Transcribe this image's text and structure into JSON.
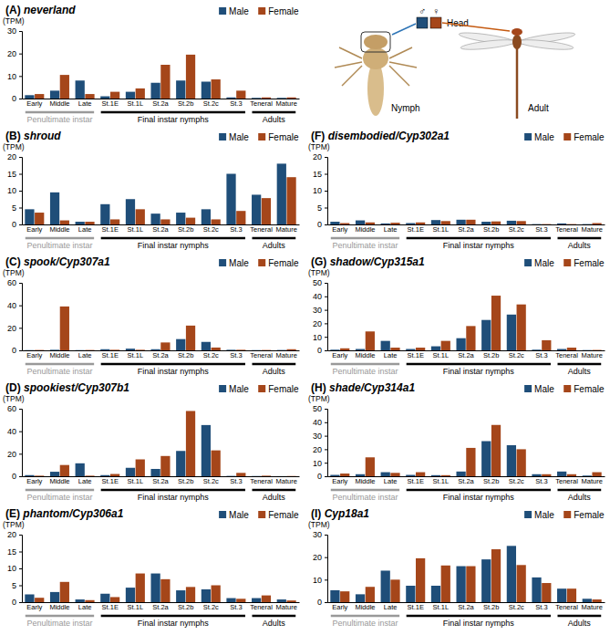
{
  "chart_data": [
    {
      "type": "bar",
      "title": "(A) neverland",
      "y_label": "(TPM)",
      "categories": [
        "Early",
        "Middle",
        "Late",
        "St.1E",
        "St.1L",
        "St.2a",
        "St.2b",
        "St.2c",
        "St.3",
        "Teneral",
        "Mature"
      ],
      "series": [
        {
          "name": "Male",
          "color": "#1f4e79",
          "values": [
            1.5,
            3.5,
            8,
            1,
            3,
            7,
            8,
            7.5,
            0.5,
            0.3,
            0.3
          ]
        },
        {
          "name": "Female",
          "color": "#a5461a",
          "values": [
            2,
            10.5,
            2,
            3,
            4.5,
            15,
            19.5,
            8.5,
            3.5,
            0.5,
            0.5
          ]
        }
      ],
      "ylim": [
        0,
        30
      ],
      "yticks": [
        0,
        10,
        20,
        30
      ],
      "grid": false,
      "legend": "top-right",
      "annotations": [
        {
          "text": "Penultimate instar",
          "from": 0,
          "to": 2,
          "color": "#999999"
        },
        {
          "text": "Final instar nymphs",
          "from": 3,
          "to": 8,
          "color": "#000000"
        },
        {
          "text": "Adults",
          "from": 9,
          "to": 10,
          "color": "#000000"
        }
      ]
    },
    {
      "type": "bar",
      "title": "(B) shroud",
      "y_label": "(TPM)",
      "categories": [
        "Early",
        "Middle",
        "Late",
        "St.1E",
        "St.1L",
        "St.2a",
        "St.2b",
        "St.2c",
        "St.3",
        "Teneral",
        "Mature"
      ],
      "series": [
        {
          "name": "Male",
          "color": "#1f4e79",
          "values": [
            4.5,
            9.5,
            0.8,
            6,
            7.5,
            3.2,
            3.5,
            4.5,
            15,
            8.8,
            18
          ]
        },
        {
          "name": "Female",
          "color": "#a5461a",
          "values": [
            3.5,
            1.2,
            0.8,
            1.5,
            4.5,
            1.5,
            2,
            1.5,
            4,
            7.8,
            14
          ]
        }
      ],
      "ylim": [
        0,
        20
      ],
      "yticks": [
        0,
        5,
        10,
        15,
        20
      ],
      "grid": false,
      "legend": "top-right",
      "annotations": [
        {
          "text": "Penultimate instar",
          "from": 0,
          "to": 2,
          "color": "#999999"
        },
        {
          "text": "Final instar nymphs",
          "from": 3,
          "to": 8,
          "color": "#000000"
        },
        {
          "text": "Adults",
          "from": 9,
          "to": 10,
          "color": "#000000"
        }
      ]
    },
    {
      "type": "bar",
      "title": "(C) spook/Cyp307a1",
      "y_label": "(TPM)",
      "categories": [
        "Early",
        "Middle",
        "Late",
        "St.1E",
        "St.1L",
        "St.2a",
        "St.2b",
        "St.2c",
        "St.3",
        "Teneral",
        "Mature"
      ],
      "series": [
        {
          "name": "Male",
          "color": "#1f4e79",
          "values": [
            0.2,
            0.5,
            0.2,
            1,
            1.5,
            1,
            10,
            7.5,
            0.5,
            0.2,
            0.3
          ]
        },
        {
          "name": "Female",
          "color": "#a5461a",
          "values": [
            0.3,
            39,
            0.3,
            0.5,
            0.5,
            7,
            22,
            2.5,
            0.5,
            0.3,
            1
          ]
        }
      ],
      "ylim": [
        0,
        60
      ],
      "yticks": [
        0,
        20,
        40,
        60
      ],
      "grid": false,
      "legend": "top-right",
      "annotations": [
        {
          "text": "Penultimate instar",
          "from": 0,
          "to": 2,
          "color": "#999999"
        },
        {
          "text": "Final instar nymphs",
          "from": 3,
          "to": 8,
          "color": "#000000"
        },
        {
          "text": "Adults",
          "from": 9,
          "to": 10,
          "color": "#000000"
        }
      ]
    },
    {
      "type": "bar",
      "title": "(D) spookiest/Cyp307b1",
      "y_label": "(TPM)",
      "categories": [
        "Early",
        "Middle",
        "Late",
        "St.1E",
        "St.1L",
        "St.2a",
        "St.2b",
        "St.2c",
        "St.3",
        "Teneral",
        "Mature"
      ],
      "series": [
        {
          "name": "Male",
          "color": "#1f4e79",
          "values": [
            1,
            4,
            11.5,
            1,
            7.5,
            6.5,
            22.5,
            45.5,
            0.3,
            0.2,
            0.1
          ]
        },
        {
          "name": "Female",
          "color": "#a5461a",
          "values": [
            0.5,
            10,
            0.5,
            2,
            15,
            18,
            58,
            23,
            3,
            0.5,
            0.2
          ]
        }
      ],
      "ylim": [
        0,
        60
      ],
      "yticks": [
        0,
        20,
        40,
        60
      ],
      "grid": false,
      "legend": "top-right",
      "annotations": [
        {
          "text": "Penultimate instar",
          "from": 0,
          "to": 2,
          "color": "#999999"
        },
        {
          "text": "Final instar nymphs",
          "from": 3,
          "to": 8,
          "color": "#000000"
        },
        {
          "text": "Adults",
          "from": 9,
          "to": 10,
          "color": "#000000"
        }
      ]
    },
    {
      "type": "bar",
      "title": "(E) phantom/Cyp306a1",
      "y_label": "(TPM)",
      "categories": [
        "Early",
        "Middle",
        "Late",
        "St.1E",
        "St.1L",
        "St.2a",
        "St.2b",
        "St.2c",
        "St.3",
        "Teneral",
        "Mature"
      ],
      "series": [
        {
          "name": "Male",
          "color": "#1f4e79",
          "values": [
            2.3,
            3,
            0.8,
            2.5,
            4.3,
            8.5,
            3.5,
            3.8,
            1.2,
            1.2,
            0.8
          ]
        },
        {
          "name": "Female",
          "color": "#a5461a",
          "values": [
            1.3,
            6,
            0.6,
            1.5,
            8.5,
            6.8,
            4.5,
            5,
            1,
            2,
            0.5
          ]
        }
      ],
      "ylim": [
        0,
        20
      ],
      "yticks": [
        0,
        5,
        10,
        15,
        20
      ],
      "grid": false,
      "legend": "top-right",
      "annotations": [
        {
          "text": "Penultimate instar",
          "from": 0,
          "to": 2,
          "color": "#999999"
        },
        {
          "text": "Final instar nymphs",
          "from": 3,
          "to": 8,
          "color": "#000000"
        },
        {
          "text": "Adults",
          "from": 9,
          "to": 10,
          "color": "#000000"
        }
      ]
    },
    {
      "type": "bar",
      "title": "(F) disembodied/Cyp302a1",
      "y_label": "(TPM)",
      "categories": [
        "Early",
        "Middle",
        "Late",
        "St.1E",
        "St.1L",
        "St.2a",
        "St.2b",
        "St.2c",
        "St.3",
        "Teneral",
        "Mature"
      ],
      "series": [
        {
          "name": "Male",
          "color": "#1f4e79",
          "values": [
            0.8,
            1.2,
            0.3,
            0.4,
            1.3,
            1.4,
            0.8,
            1.1,
            0.1,
            0.3,
            0.1
          ]
        },
        {
          "name": "Female",
          "color": "#a5461a",
          "values": [
            0.4,
            0.6,
            0.5,
            0.6,
            1,
            1.4,
            0.9,
            1,
            0.1,
            0.1,
            0.4
          ]
        }
      ],
      "ylim": [
        0,
        20
      ],
      "yticks": [
        0,
        5,
        10,
        15,
        20
      ],
      "grid": false,
      "legend": "top-right",
      "annotations": [
        {
          "text": "Penultimate instar",
          "from": 0,
          "to": 2,
          "color": "#999999"
        },
        {
          "text": "Final instar nymphs",
          "from": 3,
          "to": 8,
          "color": "#000000"
        },
        {
          "text": "Adults",
          "from": 9,
          "to": 10,
          "color": "#000000"
        }
      ]
    },
    {
      "type": "bar",
      "title": "(G) shadow/Cyp315a1",
      "y_label": "(TPM)",
      "categories": [
        "Early",
        "Middle",
        "Late",
        "St.1E",
        "St.1L",
        "St.2a",
        "St.2b",
        "St.2c",
        "St.3",
        "Teneral",
        "Mature"
      ],
      "series": [
        {
          "name": "Male",
          "color": "#1f4e79",
          "values": [
            0.5,
            1,
            7,
            1,
            3,
            9,
            22.5,
            26.5,
            0.5,
            1,
            0.2
          ]
        },
        {
          "name": "Female",
          "color": "#a5461a",
          "values": [
            1.5,
            14,
            2,
            2,
            7,
            18,
            40.5,
            34,
            7.5,
            2,
            0.3
          ]
        }
      ],
      "ylim": [
        0,
        50
      ],
      "yticks": [
        0,
        10,
        20,
        30,
        40,
        50
      ],
      "grid": false,
      "legend": "top-right",
      "annotations": [
        {
          "text": "Penultimate instar",
          "from": 0,
          "to": 2,
          "color": "#999999"
        },
        {
          "text": "Final instar nymphs",
          "from": 3,
          "to": 8,
          "color": "#000000"
        },
        {
          "text": "Adults",
          "from": 9,
          "to": 10,
          "color": "#000000"
        }
      ]
    },
    {
      "type": "bar",
      "title": "(H) shade/Cyp314a1",
      "y_label": "(TPM)",
      "categories": [
        "Early",
        "Middle",
        "Late",
        "St.1E",
        "St.1L",
        "St.2a",
        "St.2b",
        "St.2c",
        "St.3",
        "Teneral",
        "Mature"
      ],
      "series": [
        {
          "name": "Male",
          "color": "#1f4e79",
          "values": [
            1,
            1.5,
            3,
            1,
            0.8,
            3.5,
            26,
            23,
            1.5,
            3.5,
            0.5
          ]
        },
        {
          "name": "Female",
          "color": "#a5461a",
          "values": [
            2,
            14,
            2.5,
            3,
            0.8,
            21,
            38,
            20,
            1.5,
            1.5,
            3
          ]
        }
      ],
      "ylim": [
        0,
        50
      ],
      "yticks": [
        0,
        10,
        20,
        30,
        40,
        50
      ],
      "grid": false,
      "legend": "top-right",
      "annotations": [
        {
          "text": "Penultimate instar",
          "from": 0,
          "to": 2,
          "color": "#999999"
        },
        {
          "text": "Final instar nymphs",
          "from": 3,
          "to": 8,
          "color": "#000000"
        },
        {
          "text": "Adults",
          "from": 9,
          "to": 10,
          "color": "#000000"
        }
      ]
    },
    {
      "type": "bar",
      "title": "(I) Cyp18a1",
      "y_label": "(TPM)",
      "categories": [
        "Early",
        "Middle",
        "Late",
        "St.1E",
        "St.1L",
        "St.2a",
        "St.2b",
        "St.2c",
        "St.3",
        "Teneral",
        "Mature"
      ],
      "series": [
        {
          "name": "Male",
          "color": "#1f4e79",
          "values": [
            5.3,
            3.5,
            14,
            7.3,
            7.3,
            16,
            19,
            25,
            11,
            6,
            1.5
          ]
        },
        {
          "name": "Female",
          "color": "#a5461a",
          "values": [
            4.8,
            6.8,
            10,
            19.5,
            16.3,
            16,
            23.5,
            16.5,
            8.5,
            6,
            1.2
          ]
        }
      ],
      "ylim": [
        0,
        30
      ],
      "yticks": [
        0,
        10,
        20,
        30
      ],
      "grid": false,
      "legend": "top-right",
      "annotations": [
        {
          "text": "Penultimate instar",
          "from": 0,
          "to": 2,
          "color": "#999999"
        },
        {
          "text": "Final instar nymphs",
          "from": 3,
          "to": 8,
          "color": "#000000"
        },
        {
          "text": "Adults",
          "from": 9,
          "to": 10,
          "color": "#000000"
        }
      ]
    }
  ],
  "illustration": {
    "male_symbol": "♂",
    "female_symbol": "♀",
    "head_label": "Head",
    "nymph_label": "Nymph",
    "adult_label": "Adult"
  }
}
